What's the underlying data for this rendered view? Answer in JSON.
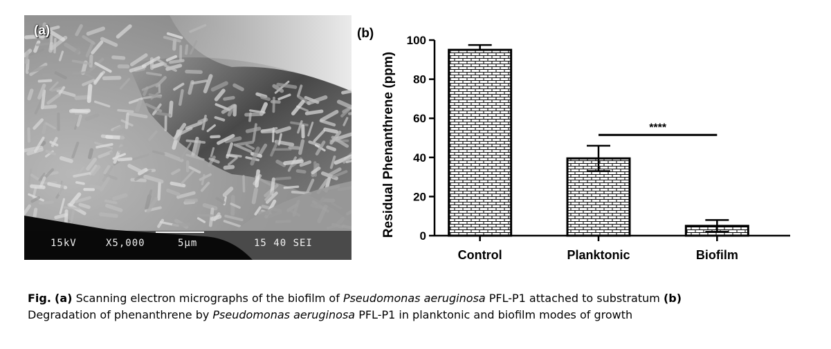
{
  "panel_a": {
    "label": "(a)",
    "sem_info": {
      "voltage": "15kV",
      "magnification": "X5,000",
      "scale": "5µm",
      "code": "15 40 SEI"
    }
  },
  "panel_b": {
    "label": "(b)"
  },
  "colors": {
    "bar_fill": "#ffffff",
    "bar_stroke": "#000000",
    "axis": "#000000"
  },
  "chart_data": {
    "type": "bar",
    "categories": [
      "Control",
      "Planktonic",
      "Biofilm"
    ],
    "values": [
      95,
      39.5,
      5
    ],
    "error": [
      2.5,
      6.5,
      3
    ],
    "ylabel": "Residual Phenanthrene (ppm)",
    "xlabel": "",
    "ylim": [
      0,
      100
    ],
    "yticks": [
      0,
      20,
      40,
      60,
      80,
      100
    ],
    "pattern": "brick",
    "significance": {
      "from": "Planktonic",
      "to": "Biofilm",
      "label": "****",
      "y": 51.5
    }
  },
  "caption": {
    "fig": "Fig.",
    "a_tag": "(a)",
    "part1": "Scanning electron micrographs of the biofilm of",
    "species1": "Pseudomonas aeruginosa",
    "part2": "PFL-P1 attached to substratum",
    "b_tag": "(b)",
    "part3": "Degradation of phenanthrene by",
    "species2": "Pseudomonas aeruginosa",
    "part4": "PFL-P1 in planktonic and biofilm modes of growth"
  }
}
